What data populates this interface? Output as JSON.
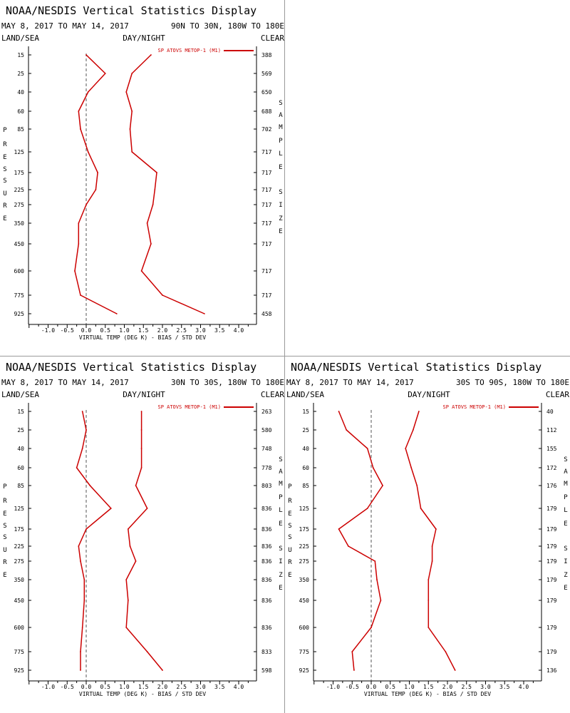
{
  "colors": {
    "series": "#cc0000",
    "zero_line": "#555555",
    "frame": "#000000",
    "divider": "#9a9a9a"
  },
  "chart_data": [
    {
      "type": "line",
      "title": "NOAA/NESDIS Vertical Statistics Display",
      "date_range": "MAY 8, 2017 TO MAY 14, 2017",
      "region": "90N TO 30N, 180W TO 180E",
      "left_header": "LAND/SEA",
      "center_header": "DAY/NIGHT",
      "right_header": "CLEAR",
      "left_axis_label": "PRESSURE",
      "right_axis_label": "SAMPLE SIZE",
      "xlabel": "VIRTUAL TEMP (DEG K) - BIAS / STD DEV",
      "xlim": [
        -1.5,
        4.5
      ],
      "x_ticks": [
        "-1.0",
        "-0.5",
        "0.0",
        "0.5",
        "1.0",
        "1.5",
        "2.0",
        "2.5",
        "3.0",
        "3.5",
        "4.0"
      ],
      "pressure_levels": [
        "15",
        "25",
        "40",
        "60",
        "85",
        "125",
        "175",
        "225",
        "275",
        "350",
        "450",
        "600",
        "775",
        "925"
      ],
      "sample_size": [
        "388",
        "569",
        "650",
        "688",
        "702",
        "717",
        "717",
        "717",
        "717",
        "717",
        "717",
        "717",
        "717",
        "458"
      ],
      "legend": "SP ATOVS METOP-1 (M1)",
      "series": [
        {
          "name": "bias",
          "values": [
            0.0,
            0.5,
            0.05,
            -0.2,
            -0.15,
            0.05,
            0.3,
            0.25,
            0.0,
            -0.2,
            -0.2,
            -0.3,
            -0.15,
            0.8
          ]
        },
        {
          "name": "std_dev",
          "values": [
            1.7,
            1.2,
            1.05,
            1.2,
            1.15,
            1.2,
            1.85,
            1.8,
            1.75,
            1.6,
            1.7,
            1.45,
            2.0,
            3.1
          ]
        }
      ]
    },
    {
      "type": "line",
      "title": "NOAA/NESDIS Vertical Statistics Display",
      "date_range": "MAY 8, 2017 TO MAY 14, 2017",
      "region": "30N TO 30S, 180W TO 180E",
      "left_header": "LAND/SEA",
      "center_header": "DAY/NIGHT",
      "right_header": "CLEAR",
      "left_axis_label": "PRESSURE",
      "right_axis_label": "SAMPLE SIZE",
      "xlabel": "VIRTUAL TEMP (DEG K) - BIAS / STD DEV",
      "xlim": [
        -1.5,
        4.5
      ],
      "x_ticks": [
        "-1.0",
        "-0.5",
        "0.0",
        "0.5",
        "1.0",
        "1.5",
        "2.0",
        "2.5",
        "3.0",
        "3.5",
        "4.0"
      ],
      "pressure_levels": [
        "15",
        "25",
        "40",
        "60",
        "85",
        "125",
        "175",
        "225",
        "275",
        "350",
        "450",
        "600",
        "775",
        "925"
      ],
      "sample_size": [
        "263",
        "580",
        "748",
        "778",
        "803",
        "836",
        "836",
        "836",
        "836",
        "836",
        "836",
        "836",
        "833",
        "598"
      ],
      "legend": "SP ATOVS METOP-1 (M1)",
      "series": [
        {
          "name": "bias",
          "values": [
            -0.1,
            0.0,
            -0.1,
            -0.25,
            0.1,
            0.65,
            0.0,
            -0.2,
            -0.15,
            -0.05,
            -0.05,
            -0.1,
            -0.15,
            -0.15
          ]
        },
        {
          "name": "std_dev",
          "values": [
            1.45,
            1.45,
            1.45,
            1.45,
            1.3,
            1.6,
            1.1,
            1.15,
            1.3,
            1.05,
            1.1,
            1.05,
            1.6,
            2.0
          ]
        }
      ]
    },
    {
      "type": "line",
      "title": "NOAA/NESDIS Vertical Statistics Display",
      "date_range": "MAY 8, 2017 TO MAY 14, 2017",
      "region": "30S TO 90S, 180W TO 180E",
      "left_header": "LAND/SEA",
      "center_header": "DAY/NIGHT",
      "right_header": "CLEAR",
      "left_axis_label": "PRESSURE",
      "right_axis_label": "SAMPLE SIZE",
      "xlabel": "VIRTUAL TEMP (DEG K) - BIAS / STD DEV",
      "xlim": [
        -1.5,
        4.5
      ],
      "x_ticks": [
        "-1.0",
        "-0.5",
        "0.0",
        "0.5",
        "1.0",
        "1.5",
        "2.0",
        "2.5",
        "3.0",
        "3.5",
        "4.0"
      ],
      "pressure_levels": [
        "15",
        "25",
        "40",
        "60",
        "85",
        "125",
        "175",
        "225",
        "275",
        "350",
        "450",
        "600",
        "775",
        "925"
      ],
      "sample_size": [
        "40",
        "112",
        "155",
        "172",
        "176",
        "179",
        "179",
        "179",
        "179",
        "179",
        "179",
        "179",
        "179",
        "136"
      ],
      "legend": "SP ATOVS METOP-1 (M1)",
      "series": [
        {
          "name": "bias",
          "values": [
            -0.85,
            -0.65,
            -0.1,
            0.05,
            0.3,
            -0.1,
            -0.85,
            -0.6,
            0.1,
            0.15,
            0.25,
            0.0,
            -0.5,
            -0.45
          ]
        },
        {
          "name": "std_dev",
          "values": [
            1.25,
            1.1,
            0.9,
            1.05,
            1.2,
            1.3,
            1.7,
            1.6,
            1.6,
            1.5,
            1.5,
            1.5,
            1.95,
            2.2
          ]
        }
      ]
    }
  ]
}
